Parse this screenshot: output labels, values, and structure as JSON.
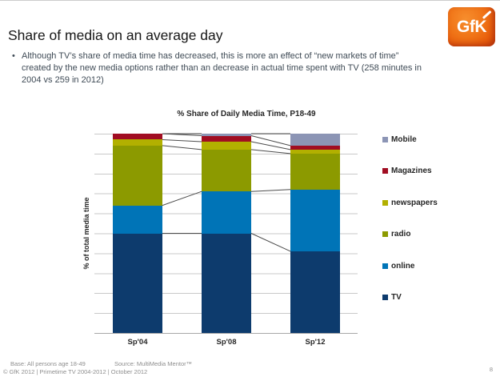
{
  "slide": {
    "title": "Share of media on an average day",
    "bullet_lines": [
      "Although TV’s share of media time has decreased, this is more an effect of “new markets of time”",
      "created by the new media options rather than an decrease in actual  time spent with TV (258 minutes in",
      "2004 vs 259 in 2012)"
    ],
    "page_number": "8"
  },
  "logo": {
    "text": "GfK"
  },
  "footer": {
    "base": "Base: All persons age 18-49",
    "source": "Source: MultiMedia Mentor™",
    "copyright": "© GfK 2012 | Primetime TV 2004-2012 | October 2012"
  },
  "chart_data": {
    "type": "bar",
    "stacked": true,
    "percent_stacked": true,
    "title": "% Share of Daily Media Time, P18-49",
    "xlabel": "",
    "ylabel": "% of total media time",
    "ylim": [
      0,
      100
    ],
    "grid": true,
    "grid_interval": 10,
    "y_tick_labels_shown": false,
    "legend_position": "right",
    "series_connector_lines": true,
    "categories": [
      "Sp'04",
      "Sp'08",
      "Sp'12"
    ],
    "series": [
      {
        "name": "TV",
        "color": "#0d3b6d",
        "values": [
          50,
          50,
          41
        ]
      },
      {
        "name": "online",
        "color": "#0074b7",
        "values": [
          14,
          21,
          31
        ]
      },
      {
        "name": "radio",
        "color": "#8c9a00",
        "values": [
          30,
          21,
          18
        ]
      },
      {
        "name": "newspapers",
        "color": "#b2b000",
        "values": [
          3,
          4,
          2
        ]
      },
      {
        "name": "Magazines",
        "color": "#a10d22",
        "values": [
          3,
          3,
          2
        ]
      },
      {
        "name": "Mobile",
        "color": "#8c95b5",
        "values": [
          0,
          1,
          6
        ]
      }
    ],
    "legend_order": [
      "Mobile",
      "Magazines",
      "newspapers",
      "radio",
      "online",
      "TV"
    ],
    "colors": {
      "gridline": "#c9c9c9",
      "axis_line": "#a8a8a8",
      "connector_line": "#4d4d4d"
    }
  }
}
